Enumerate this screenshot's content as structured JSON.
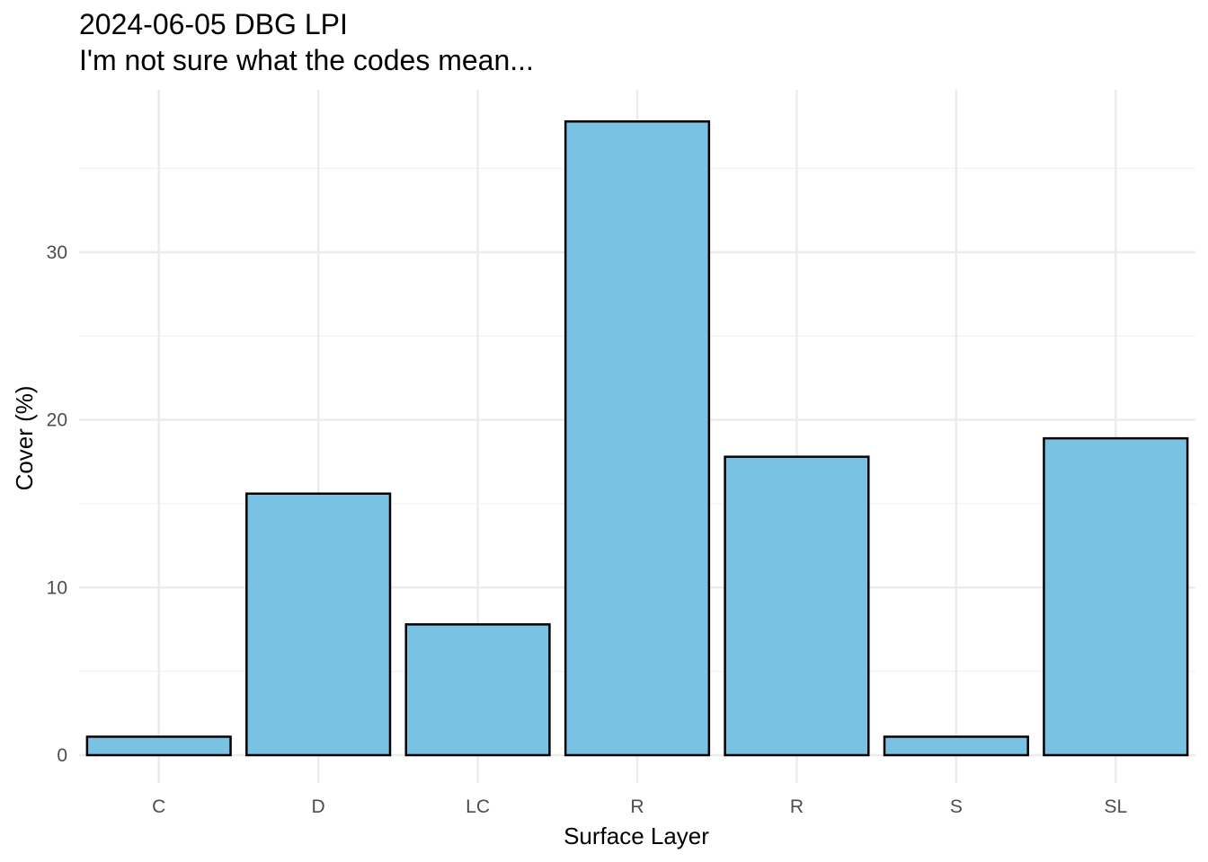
{
  "chart_data": {
    "type": "bar",
    "title": "2024-06-05 DBG LPI",
    "subtitle": "I'm not sure what the codes mean...",
    "xlabel": "Surface Layer",
    "ylabel": "Cover (%)",
    "categories": [
      "C",
      "D",
      "LC",
      "R",
      "R",
      "S",
      "SL"
    ],
    "values": [
      1.1,
      15.6,
      7.8,
      37.8,
      17.8,
      1.1,
      18.9
    ],
    "ylim": [
      0,
      40
    ],
    "yticks": [
      0,
      10,
      20,
      30
    ],
    "y_tick_labels": [
      "0",
      "10",
      "20",
      "30"
    ],
    "grid": true,
    "legend": "none",
    "colors": {
      "bar_fill": "#7AC2E4",
      "bar_stroke": "#000000",
      "grid_major": "#EBEBEB",
      "grid_minor": "#F2F2F2"
    }
  }
}
